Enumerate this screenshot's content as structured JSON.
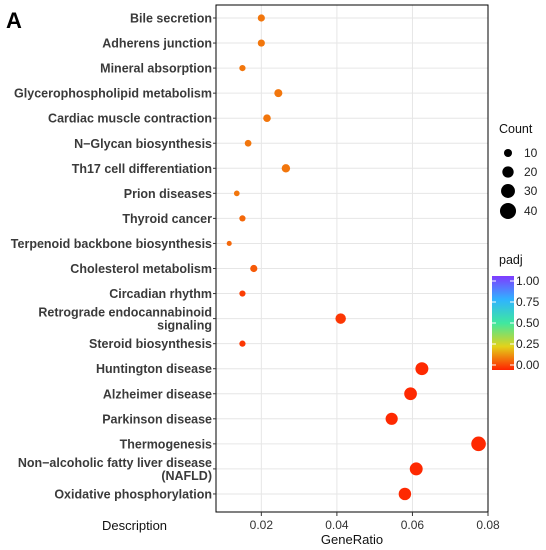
{
  "panel_label": "A",
  "colors": {
    "gradient_high": "#7f3bff",
    "gradient_mid_high": "#2fb3ff",
    "gradient_mid": "#3fe8a0",
    "gradient_mid_low": "#e3d21a",
    "gradient_low": "#ff2200",
    "grid": "#e6e6e6",
    "panel_border": "#000000"
  },
  "chart_data": {
    "type": "scatter",
    "xlabel": "GeneRatio",
    "ylabel": "Description",
    "xlim": [
      0.008,
      0.08
    ],
    "x_ticks": [
      0.02,
      0.04,
      0.06,
      0.08
    ],
    "x_tick_labels": [
      "0.02",
      "0.04",
      "0.06",
      "0.08"
    ],
    "grid": true,
    "categories": [
      "Bile secretion",
      "Adherens junction",
      "Mineral absorption",
      "Glycerophospholipid metabolism",
      "Cardiac muscle contraction",
      "N−Glycan biosynthesis",
      "Th17 cell differentiation",
      "Prion diseases",
      "Thyroid cancer",
      "Terpenoid backbone biosynthesis",
      "Cholesterol metabolism",
      "Circadian rhythm",
      "Retrograde endocannabinoid signaling",
      "Steroid biosynthesis",
      "Huntington disease",
      "Alzheimer disease",
      "Parkinson disease",
      "Thermogenesis",
      "Non−alcoholic fatty liver disease (NAFLD)",
      "Oxidative phosphorylation"
    ],
    "label_lines": [
      [
        "Bile secretion"
      ],
      [
        "Adherens junction"
      ],
      [
        "Mineral absorption"
      ],
      [
        "Glycerophospholipid metabolism"
      ],
      [
        "Cardiac muscle contraction"
      ],
      [
        "N−Glycan biosynthesis"
      ],
      [
        "Th17 cell differentiation"
      ],
      [
        "Prion diseases"
      ],
      [
        "Thyroid cancer"
      ],
      [
        "Terpenoid backbone biosynthesis"
      ],
      [
        "Cholesterol metabolism"
      ],
      [
        "Circadian rhythm"
      ],
      [
        "Retrograde endocannabinoid",
        "signaling"
      ],
      [
        "Steroid biosynthesis"
      ],
      [
        "Huntington disease"
      ],
      [
        "Alzheimer disease"
      ],
      [
        "Parkinson disease"
      ],
      [
        "Thermogenesis"
      ],
      [
        "Non−alcoholic fatty liver disease",
        "(NAFLD)"
      ],
      [
        "Oxidative phosphorylation"
      ]
    ],
    "points": [
      {
        "x": 0.02,
        "count": 8,
        "padj": 0.12
      },
      {
        "x": 0.02,
        "count": 8,
        "padj": 0.12
      },
      {
        "x": 0.015,
        "count": 6,
        "padj": 0.12
      },
      {
        "x": 0.0245,
        "count": 10,
        "padj": 0.12
      },
      {
        "x": 0.0215,
        "count": 9,
        "padj": 0.12
      },
      {
        "x": 0.0165,
        "count": 7,
        "padj": 0.12
      },
      {
        "x": 0.0265,
        "count": 11,
        "padj": 0.12
      },
      {
        "x": 0.0135,
        "count": 5,
        "padj": 0.12
      },
      {
        "x": 0.015,
        "count": 6,
        "padj": 0.1
      },
      {
        "x": 0.0115,
        "count": 4,
        "padj": 0.1
      },
      {
        "x": 0.018,
        "count": 8,
        "padj": 0.08
      },
      {
        "x": 0.015,
        "count": 6,
        "padj": 0.04
      },
      {
        "x": 0.041,
        "count": 17,
        "padj": 0.03
      },
      {
        "x": 0.015,
        "count": 6,
        "padj": 0.03
      },
      {
        "x": 0.0625,
        "count": 26,
        "padj": 0.01
      },
      {
        "x": 0.0595,
        "count": 25,
        "padj": 0.01
      },
      {
        "x": 0.0545,
        "count": 23,
        "padj": 0.01
      },
      {
        "x": 0.0775,
        "count": 33,
        "padj": 0.01
      },
      {
        "x": 0.061,
        "count": 26,
        "padj": 0.01
      },
      {
        "x": 0.058,
        "count": 24,
        "padj": 0.01
      }
    ],
    "size_legend": {
      "title": "Count",
      "values": [
        10,
        20,
        30,
        40
      ],
      "labels": [
        "10",
        "20",
        "30",
        "40"
      ]
    },
    "color_legend": {
      "title": "padj",
      "range": [
        0,
        1
      ],
      "labels": [
        "1.00",
        "0.75",
        "0.50",
        "0.25",
        "0.00"
      ]
    }
  }
}
